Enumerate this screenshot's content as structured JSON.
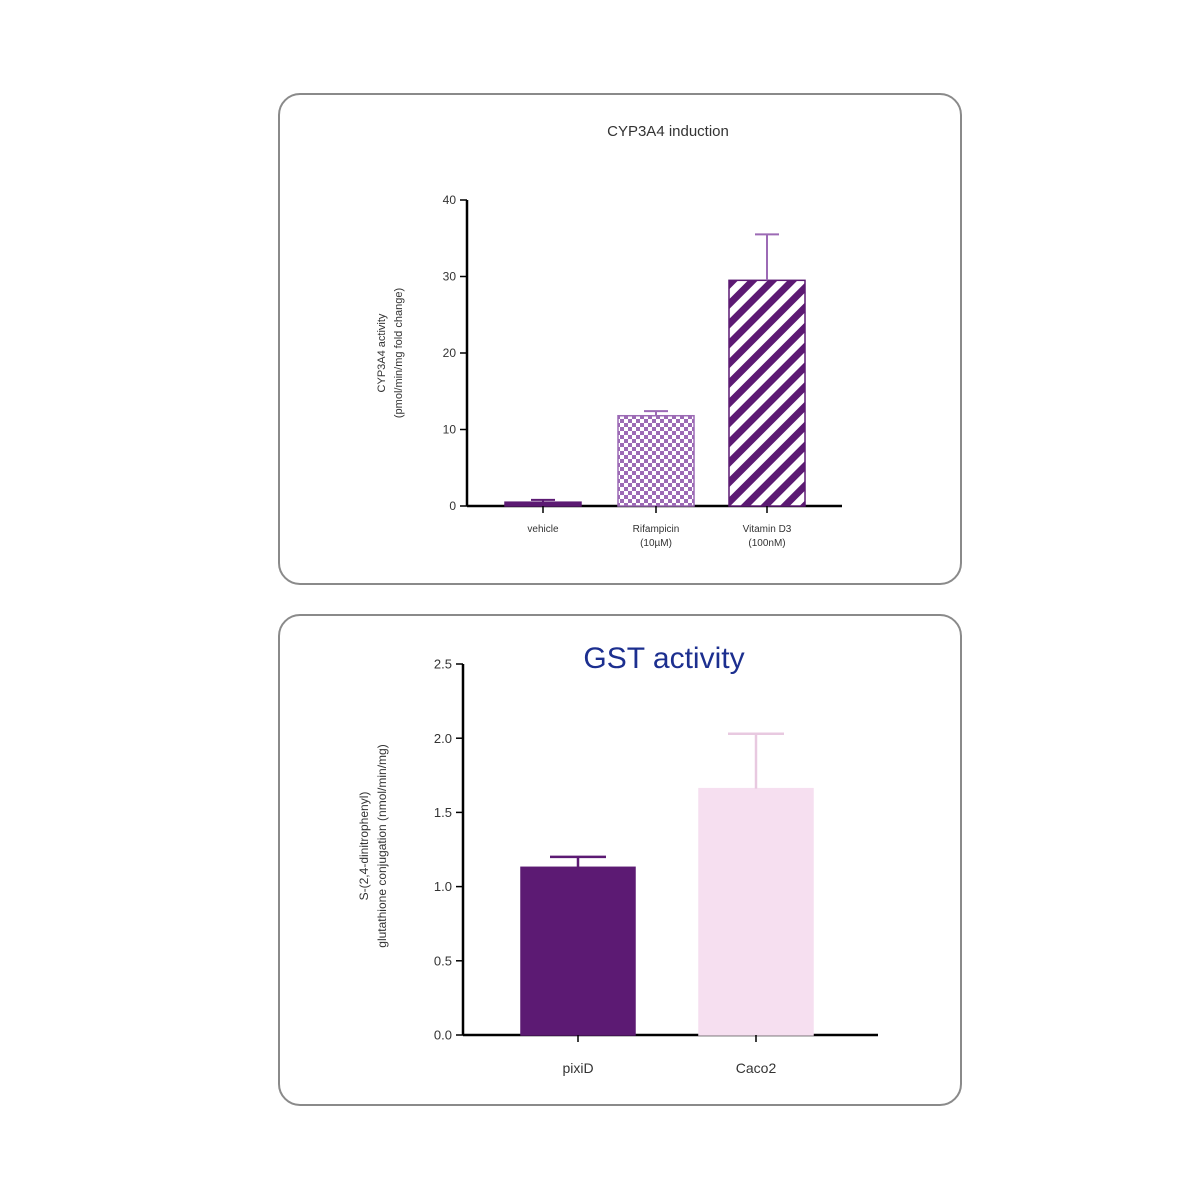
{
  "colors": {
    "panel_border": "#8a8a8a",
    "axis": "#000000",
    "dark_purple": "#5c1a73",
    "medium_purple": "#9c6ab5",
    "light_pink": "#f6dff0",
    "error_bar_light": "#e8c9e0",
    "gst_title": "#1c2f8f"
  },
  "chart_data": [
    {
      "type": "bar",
      "title": "CYP3A4 induction",
      "ylabel_line1": "CYP3A4 activity",
      "ylabel_line2": "(pmol/min/mg fold change)",
      "ylim": [
        0,
        40
      ],
      "yticks": [
        "0",
        "10",
        "20",
        "30",
        "40"
      ],
      "categories": [
        {
          "line1": "vehicle",
          "line2": ""
        },
        {
          "line1": "Rifampicin",
          "line2": "(10µM)"
        },
        {
          "line1": "Vitamin D3",
          "line2": "(100nM)"
        }
      ],
      "values": [
        0.5,
        11.8,
        29.5
      ],
      "errors": [
        0.3,
        0.6,
        6.0
      ],
      "fills": [
        "solid",
        "checker",
        "stripes"
      ]
    },
    {
      "type": "bar",
      "title": "GST activity",
      "ylabel_line1": "S-(2,4-dinitrophenyl)",
      "ylabel_line2": "glutathione conjugation (nmol/min/mg)",
      "ylim": [
        0,
        2.5
      ],
      "yticks": [
        "0.0",
        "0.5",
        "1.0",
        "1.5",
        "2.0",
        "2.5"
      ],
      "categories": [
        {
          "line1": "pixiD",
          "line2": ""
        },
        {
          "line1": "Caco2",
          "line2": ""
        }
      ],
      "values": [
        1.13,
        1.66
      ],
      "errors": [
        0.07,
        0.37
      ],
      "fills": [
        "solid",
        "solid"
      ]
    }
  ]
}
